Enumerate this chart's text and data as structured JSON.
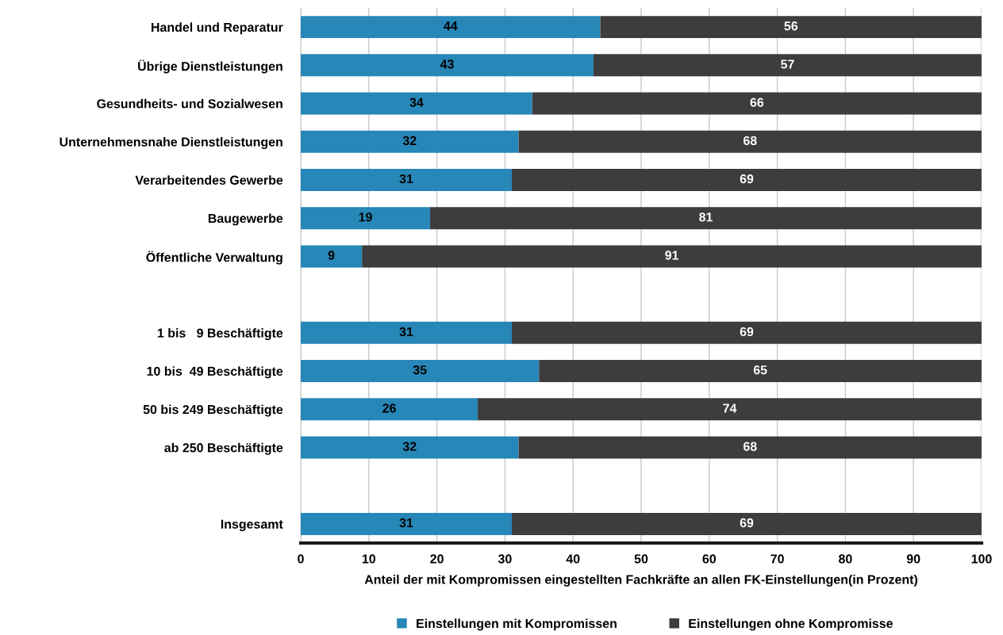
{
  "chart_data": {
    "type": "bar",
    "orientation": "horizontal",
    "stacked": true,
    "categories": [
      "Handel und Reparatur",
      "Übrige Dienstleistungen",
      "Gesundheits- und Sozialwesen",
      "Unternehmensnahe Dienstleistungen",
      "Verarbeitendes Gewerbe",
      "Baugewerbe",
      "Öffentliche Verwaltung",
      null,
      "1 bis   9 Beschäftigte",
      "10 bis  49 Beschäftigte",
      "50 bis 249 Beschäftigte",
      "ab 250 Beschäftigte",
      null,
      "Insgesamt"
    ],
    "series": [
      {
        "name": "Einstellungen mit Kompromissen",
        "color": "#2787b8",
        "values": [
          44,
          43,
          34,
          32,
          31,
          19,
          9,
          null,
          31,
          35,
          26,
          32,
          null,
          31
        ]
      },
      {
        "name": "Einstellungen ohne Kompromisse",
        "color": "#3d3d3d",
        "values": [
          56,
          57,
          66,
          68,
          69,
          81,
          91,
          null,
          69,
          65,
          74,
          68,
          null,
          69
        ]
      }
    ],
    "xlabel": "Anteil der mit Kompromissen eingestellten Fachkräfte an allen FK-Einstellungen(in Prozent)",
    "xlim": [
      0,
      100
    ],
    "xticks": [
      0,
      10,
      20,
      30,
      40,
      50,
      60,
      70,
      80,
      90,
      100
    ],
    "grid": "x",
    "legend": "bottom",
    "data_labels": true
  }
}
